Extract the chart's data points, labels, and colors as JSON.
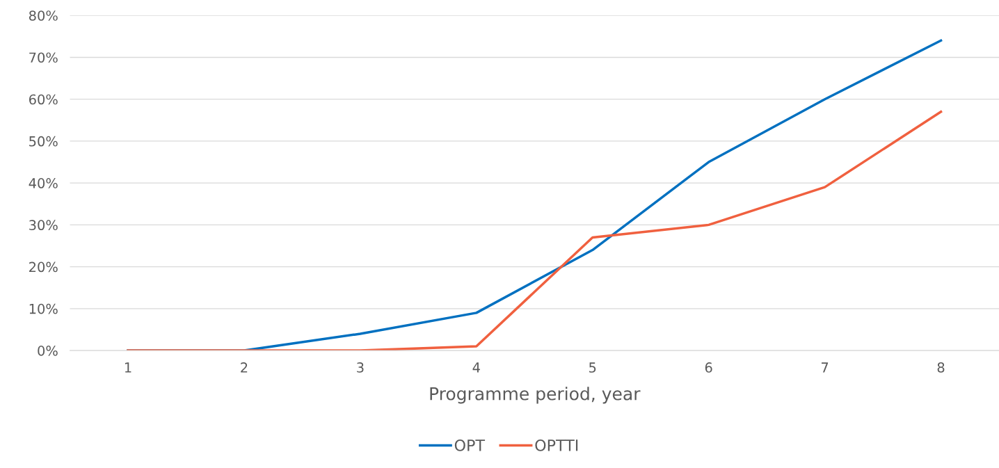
{
  "chart_data": {
    "type": "line",
    "xlabel": "Programme period, year",
    "categories": [
      "1",
      "2",
      "3",
      "4",
      "5",
      "6",
      "7",
      "8"
    ],
    "series": [
      {
        "name": "OPT",
        "color": "#0070c0",
        "values": [
          0,
          0,
          4,
          9,
          24,
          45,
          60,
          74
        ]
      },
      {
        "name": "OPTTI",
        "color": "#f0603f",
        "values": [
          0,
          0,
          0,
          1,
          27,
          30,
          39,
          57
        ]
      }
    ],
    "ylim": [
      0,
      80
    ],
    "yticks": [
      {
        "value": 0,
        "label": "0%"
      },
      {
        "value": 10,
        "label": "10%"
      },
      {
        "value": 20,
        "label": "20%"
      },
      {
        "value": 30,
        "label": "30%"
      },
      {
        "value": 40,
        "label": "40%"
      },
      {
        "value": 50,
        "label": "50%"
      },
      {
        "value": 60,
        "label": "60%"
      },
      {
        "value": 70,
        "label": "70%"
      },
      {
        "value": 80,
        "label": "80%"
      }
    ],
    "grid": "y",
    "legend": "bottom",
    "marker": "none",
    "line_style": "solid"
  }
}
